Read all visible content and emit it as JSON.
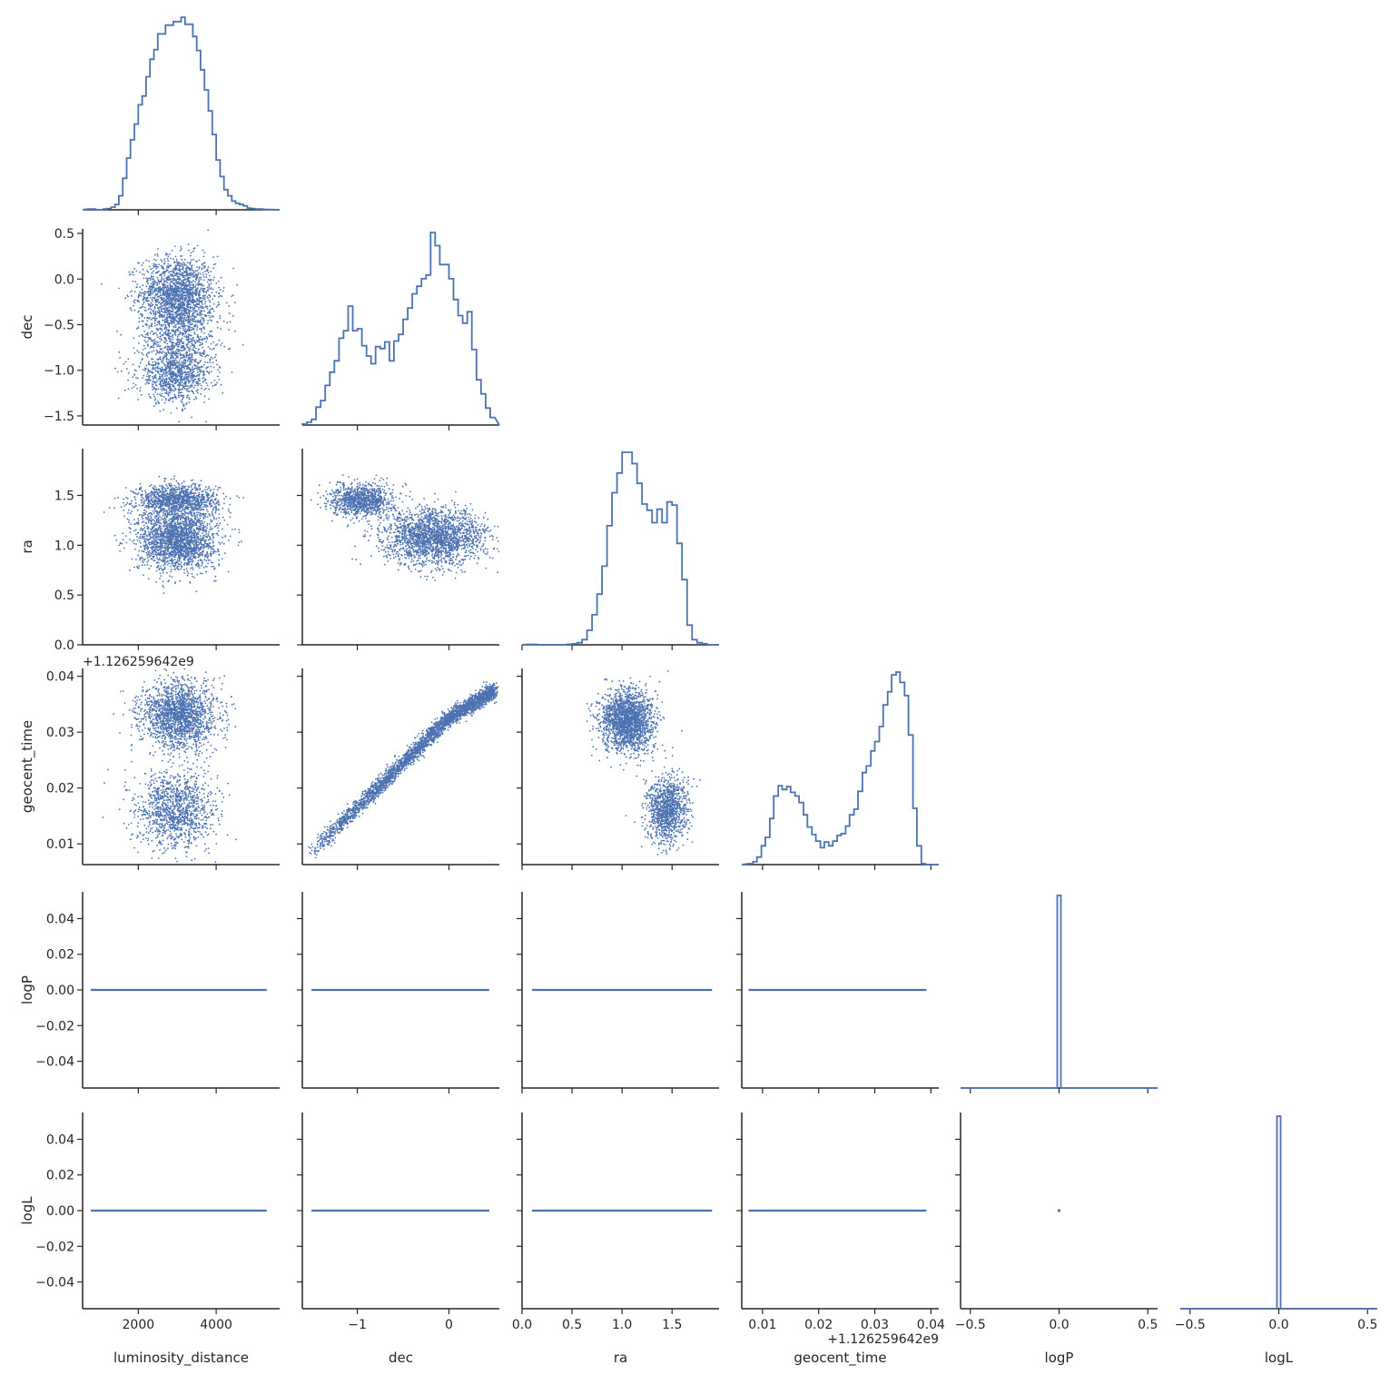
{
  "chart_data": {
    "type": "pairplot",
    "subtype": "corner",
    "colors": {
      "series": "#4c72b0",
      "axis": "#262626",
      "background": "#ffffff"
    },
    "grid": false,
    "variables": [
      {
        "name": "luminosity_distance",
        "label": "luminosity_distance",
        "xlim": [
          570,
          5630
        ],
        "ylim": [
          0,
          2200
        ],
        "xticks": [
          {
            "value": 2000,
            "label": "2000"
          },
          {
            "value": 4000,
            "label": "4000"
          }
        ],
        "yticks": []
      },
      {
        "name": "dec",
        "label": "dec",
        "xlim": [
          -1.6,
          0.55
        ],
        "ylim": [
          -1.6,
          0.55
        ],
        "xticks": [
          {
            "value": -1,
            "label": "−1"
          },
          {
            "value": 0,
            "label": "0"
          }
        ],
        "yticks": [
          {
            "value": -1.5,
            "label": "−1.5"
          },
          {
            "value": -1.0,
            "label": "−1.0"
          },
          {
            "value": -0.5,
            "label": "−0.5"
          },
          {
            "value": 0.0,
            "label": "0.0"
          },
          {
            "value": 0.5,
            "label": "0.5"
          }
        ]
      },
      {
        "name": "ra",
        "label": "ra",
        "xlim": [
          0,
          1.97
        ],
        "ylim": [
          0,
          1.97
        ],
        "xticks": [
          {
            "value": 0,
            "label": "0.0"
          },
          {
            "value": 0.5,
            "label": "0.5"
          },
          {
            "value": 1.0,
            "label": "1.0"
          },
          {
            "value": 1.5,
            "label": "1.5"
          }
        ],
        "yticks": [
          {
            "value": 0,
            "label": "0.0"
          },
          {
            "value": 0.5,
            "label": "0.5"
          },
          {
            "value": 1.0,
            "label": "1.0"
          },
          {
            "value": 1.5,
            "label": "1.5"
          }
        ]
      },
      {
        "name": "geocent_time",
        "label": "geocent_time",
        "offset_label": "+1.126259642e9",
        "xlim": [
          0.0063,
          0.0414
        ],
        "ylim": [
          0.0063,
          0.0414
        ],
        "xticks": [
          {
            "value": 0.01,
            "label": "0.01"
          },
          {
            "value": 0.02,
            "label": "0.02"
          },
          {
            "value": 0.03,
            "label": "0.03"
          },
          {
            "value": 0.04,
            "label": "0.04"
          }
        ],
        "yticks": [
          {
            "value": 0.01,
            "label": "0.01"
          },
          {
            "value": 0.02,
            "label": "0.02"
          },
          {
            "value": 0.03,
            "label": "0.03"
          },
          {
            "value": 0.04,
            "label": "0.04"
          }
        ]
      },
      {
        "name": "logP",
        "label": "logP",
        "xlim": [
          -0.555,
          0.555
        ],
        "ylim": [
          -0.055,
          0.055
        ],
        "xticks": [
          {
            "value": -0.5,
            "label": "−0.5"
          },
          {
            "value": 0.0,
            "label": "0.0"
          },
          {
            "value": 0.5,
            "label": "0.5"
          }
        ],
        "yticks": [
          {
            "value": -0.04,
            "label": "−0.04"
          },
          {
            "value": -0.02,
            "label": "−0.02"
          },
          {
            "value": 0.0,
            "label": "0.00"
          },
          {
            "value": 0.02,
            "label": "0.02"
          },
          {
            "value": 0.04,
            "label": "0.04"
          }
        ]
      },
      {
        "name": "logL",
        "label": "logL",
        "xlim": [
          -0.555,
          0.555
        ],
        "ylim": [
          -0.055,
          0.055
        ],
        "xticks": [
          {
            "value": -0.5,
            "label": "−0.5"
          },
          {
            "value": 0.0,
            "label": "0.0"
          },
          {
            "value": 0.5,
            "label": "0.5"
          }
        ],
        "yticks": [
          {
            "value": -0.04,
            "label": "−0.04"
          },
          {
            "value": -0.02,
            "label": "−0.02"
          },
          {
            "value": 0.0,
            "label": "0.00"
          },
          {
            "value": 0.02,
            "label": "0.02"
          },
          {
            "value": 0.04,
            "label": "0.04"
          }
        ]
      }
    ],
    "histograms": {
      "luminosity_distance": {
        "edges": [
          700,
          800,
          900,
          1000,
          1100,
          1200,
          1300,
          1400,
          1500,
          1600,
          1700,
          1800,
          1900,
          2000,
          2100,
          2200,
          2300,
          2400,
          2500,
          2600,
          2700,
          2800,
          2900,
          3000,
          3100,
          3200,
          3300,
          3400,
          3500,
          3600,
          3700,
          3800,
          3900,
          4000,
          4100,
          4200,
          4300,
          4400,
          4500,
          4600,
          4700,
          4800,
          4900,
          5000,
          5100,
          5200,
          5300
        ],
        "counts": [
          8,
          8,
          0,
          0,
          8,
          15,
          30,
          60,
          160,
          360,
          590,
          800,
          980,
          1200,
          1300,
          1520,
          1720,
          1830,
          2010,
          2010,
          2110,
          2110,
          2150,
          2150,
          2200,
          2120,
          2120,
          1980,
          1820,
          1600,
          1370,
          1130,
          860,
          570,
          380,
          230,
          160,
          100,
          75,
          60,
          45,
          20,
          15,
          8,
          8,
          5
        ]
      },
      "dec": {
        "edges": [
          -1.6,
          -1.55,
          -1.5,
          -1.45,
          -1.4,
          -1.35,
          -1.3,
          -1.25,
          -1.2,
          -1.15,
          -1.1,
          -1.05,
          -1.0,
          -0.95,
          -0.9,
          -0.85,
          -0.8,
          -0.75,
          -0.7,
          -0.65,
          -0.6,
          -0.55,
          -0.5,
          -0.45,
          -0.4,
          -0.35,
          -0.3,
          -0.25,
          -0.2,
          -0.15,
          -0.1,
          -0.05,
          0.0,
          0.05,
          0.1,
          0.15,
          0.2,
          0.25,
          0.3,
          0.35,
          0.4,
          0.45,
          0.5
        ],
        "counts": [
          10,
          30,
          60,
          190,
          260,
          420,
          560,
          680,
          920,
          1000,
          1260,
          1000,
          1020,
          840,
          730,
          650,
          830,
          810,
          880,
          680,
          890,
          960,
          1120,
          1240,
          1390,
          1470,
          1550,
          1590,
          2040,
          1900,
          1700,
          1700,
          1550,
          1330,
          1160,
          1080,
          1200,
          800,
          480,
          330,
          180,
          80
        ]
      },
      "ra": {
        "edges": [
          0.05,
          0.15,
          0.25,
          0.35,
          0.45,
          0.5,
          0.55,
          0.6,
          0.65,
          0.7,
          0.75,
          0.8,
          0.85,
          0.9,
          0.95,
          1.0,
          1.05,
          1.1,
          1.15,
          1.2,
          1.25,
          1.3,
          1.35,
          1.4,
          1.45,
          1.5,
          1.55,
          1.6,
          1.65,
          1.7,
          1.75,
          1.8,
          1.85,
          1.95
        ],
        "counts": [
          4,
          0,
          0,
          0,
          5,
          10,
          20,
          50,
          140,
          290,
          490,
          760,
          1150,
          1470,
          1660,
          1860,
          1860,
          1750,
          1560,
          1360,
          1300,
          1180,
          1310,
          1180,
          1380,
          1350,
          980,
          630,
          190,
          50,
          20,
          10,
          0
        ]
      },
      "geocent_time": {
        "edges": [
          0.0075,
          0.0083,
          0.009,
          0.0098,
          0.0105,
          0.0113,
          0.012,
          0.0128,
          0.0135,
          0.0143,
          0.015,
          0.0158,
          0.0165,
          0.0173,
          0.018,
          0.0188,
          0.0195,
          0.0203,
          0.021,
          0.0218,
          0.0225,
          0.0233,
          0.024,
          0.0248,
          0.0255,
          0.0263,
          0.027,
          0.0278,
          0.0285,
          0.0293,
          0.03,
          0.0308,
          0.0315,
          0.0323,
          0.033,
          0.0338,
          0.0345,
          0.0353,
          0.036,
          0.0368,
          0.0375,
          0.0383,
          0.039,
          0.0398
        ],
        "counts": [
          10,
          30,
          80,
          200,
          290,
          490,
          730,
          840,
          800,
          830,
          770,
          730,
          660,
          530,
          400,
          320,
          250,
          180,
          240,
          200,
          250,
          310,
          330,
          410,
          530,
          590,
          780,
          980,
          1050,
          1210,
          1310,
          1470,
          1700,
          1840,
          2020,
          2050,
          1940,
          1800,
          1380,
          600,
          200,
          10,
          0
        ]
      },
      "logP": {
        "edges": [
          -0.5,
          -0.01,
          0.01,
          0.5
        ],
        "counts": [
          0,
          5000,
          0
        ]
      },
      "logL": {
        "edges": [
          -0.5,
          -0.01,
          0.01,
          0.5
        ],
        "counts": [
          0,
          5000,
          0
        ]
      }
    },
    "scatter_components": {
      "dec_vs_luminosity_distance": [
        {
          "n": 1500,
          "x_mean": 3000,
          "x_sd": 480,
          "y_mean": -0.15,
          "y_sd": 0.2
        },
        {
          "n": 800,
          "x_mean": 3050,
          "x_sd": 500,
          "y_mean": -0.55,
          "y_sd": 0.25
        },
        {
          "n": 900,
          "x_mean": 2950,
          "x_sd": 480,
          "y_mean": -1.05,
          "y_sd": 0.15
        }
      ],
      "ra_vs_luminosity_distance": [
        {
          "n": 1200,
          "x_mean": 3000,
          "x_sd": 520,
          "y_mean": 1.45,
          "y_sd": 0.08
        },
        {
          "n": 2000,
          "x_mean": 3000,
          "x_sd": 500,
          "y_mean": 1.05,
          "y_sd": 0.15
        }
      ],
      "ra_vs_dec": [
        {
          "n": 1000,
          "x_mean": -0.95,
          "x_sd": 0.17,
          "y_mean": 1.45,
          "y_sd": 0.08
        },
        {
          "n": 2000,
          "x_mean": -0.15,
          "x_sd": 0.28,
          "y_mean": 1.08,
          "y_sd": 0.14
        }
      ],
      "geocent_time_vs_luminosity_distance": [
        {
          "n": 1800,
          "x_mean": 3050,
          "x_sd": 480,
          "y_mean": 0.033,
          "y_sd": 0.003
        },
        {
          "n": 1200,
          "x_mean": 2950,
          "x_sd": 500,
          "y_mean": 0.016,
          "y_sd": 0.0035
        }
      ],
      "geocent_time_vs_dec_curve": {
        "n": 3000,
        "points": [
          [
            -1.5,
            0.0085
          ],
          [
            -1.0,
            0.0165
          ],
          [
            -0.5,
            0.0245
          ],
          [
            0.0,
            0.0325
          ],
          [
            0.5,
            0.0375
          ]
        ],
        "y_sd": 0.0007
      },
      "geocent_time_vs_ra": [
        {
          "n": 1900,
          "x_mean": 1.05,
          "x_sd": 0.13,
          "y_mean": 0.032,
          "y_sd": 0.0028
        },
        {
          "n": 1100,
          "x_mean": 1.45,
          "x_sd": 0.1,
          "y_mean": 0.016,
          "y_sd": 0.003
        }
      ]
    },
    "zero_lines": {
      "luminosity_distance": [
        780,
        5300
      ],
      "dec": [
        -1.5,
        0.44
      ],
      "ra": [
        0.1,
        1.9
      ],
      "geocent_time": [
        0.0075,
        0.0392
      ],
      "logP": [
        0.0,
        0.0
      ]
    }
  }
}
